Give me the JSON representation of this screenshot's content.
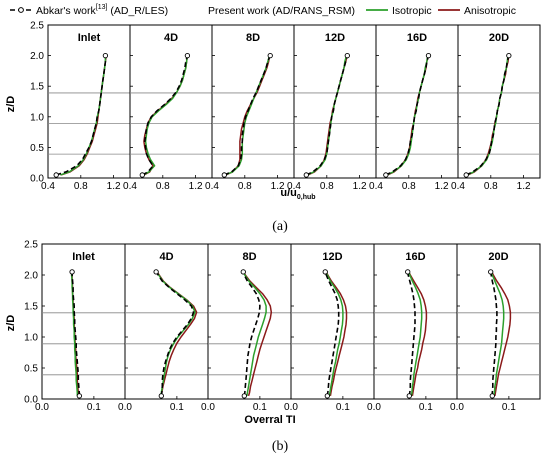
{
  "legend": {
    "ref_label": "Abkar's work",
    "ref_citation": "[13]",
    "ref_method": " (AD_R/LES)",
    "present_label": "Present work (AD/RANS_RSM)",
    "iso_label": "Isotropic",
    "aniso_label": "Anisotropic"
  },
  "colors": {
    "ref": "#000000",
    "isotropic": "#2ca02c",
    "anisotropic": "#8b1a1a",
    "hline": "#888888"
  },
  "figure_a": {
    "caption": "(a)",
    "ylabel": "z/D",
    "xlabel_main": "u/u",
    "xlabel_sub": "0,hub"
  },
  "figure_b": {
    "caption": "(b)",
    "ylabel": "z/D",
    "xlabel": "Overral TI"
  },
  "chart_data": [
    {
      "type": "line",
      "panel_titles": [
        "Inlet",
        "4D",
        "8D",
        "12D",
        "16D",
        "20D"
      ],
      "xlim": [
        0.4,
        1.4
      ],
      "xticks": [
        "0.4",
        "0.8",
        "1.2",
        "0.4",
        "0.8",
        "1.2",
        "0.4",
        "0.8",
        "1.2",
        "0.4",
        "0.8",
        "1.2",
        "0.4",
        "0.8",
        "1.2",
        "0.4",
        "0.8",
        "1.2"
      ],
      "ylim": [
        0,
        2.5
      ],
      "yticks": [
        "0.0",
        "0.5",
        "1.0",
        "1.5",
        "2.0",
        "2.5"
      ],
      "hlines": [
        0.39,
        0.89,
        1.39
      ],
      "z": [
        0.05,
        0.1,
        0.2,
        0.3,
        0.4,
        0.5,
        0.6,
        0.7,
        0.8,
        0.9,
        1.0,
        1.1,
        1.2,
        1.3,
        1.4,
        1.5,
        1.6,
        1.7,
        1.8,
        1.9,
        2.0
      ],
      "panels": [
        {
          "ref": [
            0.5,
            0.62,
            0.75,
            0.82,
            0.86,
            0.9,
            0.93,
            0.95,
            0.97,
            0.99,
            1.0,
            1.02,
            1.03,
            1.04,
            1.05,
            1.06,
            1.07,
            1.08,
            1.09,
            1.1,
            1.1
          ],
          "iso": [
            0.55,
            0.66,
            0.77,
            0.83,
            0.87,
            0.9,
            0.93,
            0.95,
            0.97,
            0.99,
            1.0,
            1.02,
            1.03,
            1.04,
            1.05,
            1.06,
            1.07,
            1.08,
            1.09,
            1.1,
            1.1
          ],
          "aniso": [
            0.56,
            0.67,
            0.78,
            0.84,
            0.88,
            0.91,
            0.94,
            0.96,
            0.98,
            1.0,
            1.01,
            1.02,
            1.03,
            1.04,
            1.05,
            1.06,
            1.07,
            1.08,
            1.09,
            1.1,
            1.11
          ]
        },
        {
          "ref": [
            0.55,
            0.62,
            0.68,
            0.63,
            0.6,
            0.59,
            0.58,
            0.59,
            0.6,
            0.62,
            0.66,
            0.73,
            0.82,
            0.9,
            0.96,
            1.0,
            1.03,
            1.05,
            1.07,
            1.08,
            1.1
          ],
          "iso": [
            0.56,
            0.63,
            0.7,
            0.65,
            0.62,
            0.6,
            0.59,
            0.6,
            0.61,
            0.63,
            0.67,
            0.75,
            0.84,
            0.92,
            0.97,
            1.01,
            1.04,
            1.06,
            1.08,
            1.09,
            1.1
          ],
          "aniso": [
            0.57,
            0.64,
            0.68,
            0.63,
            0.6,
            0.58,
            0.57,
            0.58,
            0.6,
            0.62,
            0.66,
            0.74,
            0.83,
            0.91,
            0.97,
            1.01,
            1.04,
            1.06,
            1.08,
            1.09,
            1.1
          ]
        },
        {
          "ref": [
            0.55,
            0.64,
            0.72,
            0.75,
            0.76,
            0.76,
            0.77,
            0.77,
            0.78,
            0.79,
            0.81,
            0.84,
            0.87,
            0.9,
            0.94,
            0.97,
            1.0,
            1.03,
            1.06,
            1.08,
            1.11
          ],
          "iso": [
            0.56,
            0.65,
            0.73,
            0.76,
            0.77,
            0.77,
            0.77,
            0.78,
            0.79,
            0.8,
            0.82,
            0.85,
            0.88,
            0.91,
            0.94,
            0.97,
            1.0,
            1.03,
            1.06,
            1.08,
            1.1
          ],
          "aniso": [
            0.57,
            0.65,
            0.72,
            0.74,
            0.74,
            0.74,
            0.74,
            0.75,
            0.76,
            0.78,
            0.8,
            0.83,
            0.87,
            0.91,
            0.95,
            0.98,
            1.01,
            1.04,
            1.07,
            1.09,
            1.1
          ]
        },
        {
          "ref": [
            0.55,
            0.63,
            0.72,
            0.77,
            0.8,
            0.81,
            0.82,
            0.83,
            0.84,
            0.85,
            0.86,
            0.88,
            0.89,
            0.91,
            0.93,
            0.95,
            0.97,
            0.99,
            1.01,
            1.03,
            1.05
          ],
          "iso": [
            0.56,
            0.64,
            0.73,
            0.78,
            0.8,
            0.81,
            0.82,
            0.83,
            0.84,
            0.85,
            0.86,
            0.88,
            0.89,
            0.91,
            0.93,
            0.95,
            0.97,
            0.99,
            1.01,
            1.02,
            1.04
          ],
          "aniso": [
            0.57,
            0.65,
            0.73,
            0.77,
            0.79,
            0.8,
            0.81,
            0.82,
            0.83,
            0.84,
            0.86,
            0.87,
            0.89,
            0.91,
            0.93,
            0.95,
            0.97,
            0.99,
            1.01,
            1.03,
            1.05
          ]
        },
        {
          "ref": [
            0.52,
            0.6,
            0.7,
            0.76,
            0.79,
            0.81,
            0.82,
            0.84,
            0.85,
            0.86,
            0.87,
            0.89,
            0.9,
            0.92,
            0.93,
            0.95,
            0.97,
            0.99,
            1.01,
            1.02,
            1.04
          ],
          "iso": [
            0.53,
            0.61,
            0.71,
            0.77,
            0.8,
            0.82,
            0.83,
            0.84,
            0.85,
            0.86,
            0.87,
            0.89,
            0.9,
            0.92,
            0.93,
            0.95,
            0.97,
            0.99,
            1.0,
            1.02,
            1.03
          ],
          "aniso": [
            0.54,
            0.62,
            0.71,
            0.76,
            0.79,
            0.81,
            0.82,
            0.83,
            0.84,
            0.86,
            0.87,
            0.88,
            0.9,
            0.91,
            0.93,
            0.95,
            0.97,
            0.99,
            1.01,
            1.02,
            1.04
          ]
        },
        {
          "ref": [
            0.5,
            0.58,
            0.68,
            0.74,
            0.78,
            0.8,
            0.81,
            0.83,
            0.84,
            0.85,
            0.87,
            0.88,
            0.9,
            0.91,
            0.93,
            0.94,
            0.96,
            0.97,
            0.99,
            1.0,
            1.02
          ],
          "iso": [
            0.51,
            0.59,
            0.69,
            0.75,
            0.78,
            0.8,
            0.82,
            0.83,
            0.84,
            0.86,
            0.87,
            0.88,
            0.9,
            0.91,
            0.93,
            0.94,
            0.96,
            0.97,
            0.99,
            1.0,
            1.01
          ],
          "aniso": [
            0.52,
            0.6,
            0.69,
            0.74,
            0.77,
            0.79,
            0.81,
            0.82,
            0.84,
            0.85,
            0.87,
            0.88,
            0.9,
            0.91,
            0.93,
            0.94,
            0.96,
            0.98,
            0.99,
            1.01,
            1.02
          ]
        }
      ]
    },
    {
      "type": "line",
      "panel_titles": [
        "Inlet",
        "4D",
        "8D",
        "12D",
        "16D",
        "20D"
      ],
      "xlim": [
        0.0,
        0.16
      ],
      "xticks": [
        "0.0",
        "0.1",
        "0.0",
        "0.1",
        "0.0",
        "0.1",
        "0.0",
        "0.1",
        "0.0",
        "0.1",
        "0.0",
        "0.1"
      ],
      "ylim": [
        0,
        2.5
      ],
      "yticks": [
        "0.0",
        "0.5",
        "1.0",
        "1.5",
        "2.0",
        "2.5"
      ],
      "hlines": [
        0.39,
        0.89,
        1.39
      ],
      "z": [
        0.05,
        0.1,
        0.2,
        0.3,
        0.4,
        0.5,
        0.6,
        0.7,
        0.8,
        0.9,
        1.0,
        1.1,
        1.2,
        1.3,
        1.4,
        1.5,
        1.6,
        1.7,
        1.8,
        1.9,
        2.0,
        2.05
      ],
      "panels": [
        {
          "ref": [
            0.072,
            0.072,
            0.071,
            0.07,
            0.07,
            0.069,
            0.068,
            0.067,
            0.066,
            0.066,
            0.065,
            0.064,
            0.063,
            0.063,
            0.062,
            0.062,
            0.061,
            0.06,
            0.06,
            0.059,
            0.058,
            0.058
          ],
          "iso": [
            0.068,
            0.068,
            0.067,
            0.066,
            0.066,
            0.065,
            0.064,
            0.064,
            0.063,
            0.063,
            0.062,
            0.062,
            0.061,
            0.061,
            0.06,
            0.06,
            0.059,
            0.059,
            0.058,
            0.058,
            0.057,
            0.057
          ],
          "aniso": [
            0.07,
            0.07,
            0.069,
            0.068,
            0.068,
            0.067,
            0.066,
            0.065,
            0.065,
            0.064,
            0.063,
            0.063,
            0.062,
            0.062,
            0.061,
            0.06,
            0.06,
            0.059,
            0.059,
            0.058,
            0.058,
            0.057
          ]
        },
        {
          "ref": [
            0.07,
            0.071,
            0.072,
            0.072,
            0.073,
            0.075,
            0.078,
            0.082,
            0.086,
            0.092,
            0.1,
            0.11,
            0.12,
            0.128,
            0.132,
            0.128,
            0.115,
            0.1,
            0.085,
            0.072,
            0.064,
            0.06
          ],
          "iso": [
            0.068,
            0.07,
            0.072,
            0.074,
            0.076,
            0.078,
            0.08,
            0.083,
            0.088,
            0.094,
            0.102,
            0.112,
            0.122,
            0.13,
            0.135,
            0.13,
            0.118,
            0.102,
            0.086,
            0.073,
            0.065,
            0.061
          ],
          "aniso": [
            0.069,
            0.071,
            0.073,
            0.076,
            0.079,
            0.082,
            0.085,
            0.089,
            0.094,
            0.1,
            0.108,
            0.117,
            0.126,
            0.134,
            0.138,
            0.132,
            0.119,
            0.103,
            0.087,
            0.074,
            0.066,
            0.062
          ]
        },
        {
          "ref": [
            0.07,
            0.071,
            0.072,
            0.073,
            0.074,
            0.075,
            0.076,
            0.077,
            0.079,
            0.081,
            0.084,
            0.088,
            0.092,
            0.096,
            0.099,
            0.1,
            0.098,
            0.093,
            0.085,
            0.076,
            0.07,
            0.068
          ],
          "iso": [
            0.075,
            0.076,
            0.078,
            0.08,
            0.082,
            0.084,
            0.086,
            0.088,
            0.091,
            0.094,
            0.097,
            0.101,
            0.105,
            0.109,
            0.112,
            0.112,
            0.108,
            0.1,
            0.09,
            0.079,
            0.071,
            0.068
          ],
          "aniso": [
            0.078,
            0.08,
            0.082,
            0.085,
            0.088,
            0.091,
            0.094,
            0.097,
            0.1,
            0.104,
            0.108,
            0.112,
            0.116,
            0.12,
            0.122,
            0.12,
            0.114,
            0.105,
            0.093,
            0.081,
            0.072,
            0.069
          ]
        },
        {
          "ref": [
            0.07,
            0.071,
            0.072,
            0.073,
            0.075,
            0.077,
            0.079,
            0.081,
            0.083,
            0.085,
            0.087,
            0.089,
            0.091,
            0.092,
            0.092,
            0.091,
            0.089,
            0.085,
            0.079,
            0.073,
            0.068,
            0.066
          ],
          "iso": [
            0.074,
            0.075,
            0.077,
            0.079,
            0.081,
            0.083,
            0.086,
            0.088,
            0.09,
            0.093,
            0.095,
            0.097,
            0.099,
            0.1,
            0.1,
            0.099,
            0.096,
            0.091,
            0.084,
            0.076,
            0.07,
            0.067
          ],
          "aniso": [
            0.076,
            0.077,
            0.079,
            0.082,
            0.084,
            0.087,
            0.09,
            0.093,
            0.096,
            0.099,
            0.102,
            0.104,
            0.106,
            0.107,
            0.107,
            0.105,
            0.101,
            0.095,
            0.087,
            0.078,
            0.071,
            0.068
          ]
        },
        {
          "ref": [
            0.068,
            0.069,
            0.07,
            0.07,
            0.071,
            0.072,
            0.073,
            0.074,
            0.075,
            0.076,
            0.077,
            0.078,
            0.079,
            0.079,
            0.079,
            0.078,
            0.077,
            0.075,
            0.072,
            0.069,
            0.066,
            0.065
          ],
          "iso": [
            0.072,
            0.073,
            0.074,
            0.076,
            0.077,
            0.079,
            0.081,
            0.083,
            0.085,
            0.087,
            0.089,
            0.09,
            0.091,
            0.092,
            0.092,
            0.091,
            0.089,
            0.085,
            0.08,
            0.074,
            0.069,
            0.067
          ],
          "aniso": [
            0.074,
            0.075,
            0.077,
            0.079,
            0.081,
            0.084,
            0.086,
            0.089,
            0.092,
            0.094,
            0.097,
            0.099,
            0.1,
            0.101,
            0.101,
            0.099,
            0.096,
            0.091,
            0.084,
            0.077,
            0.07,
            0.067
          ]
        },
        {
          "ref": [
            0.068,
            0.068,
            0.069,
            0.069,
            0.07,
            0.071,
            0.072,
            0.073,
            0.074,
            0.075,
            0.075,
            0.076,
            0.076,
            0.077,
            0.077,
            0.076,
            0.075,
            0.073,
            0.071,
            0.068,
            0.066,
            0.065
          ],
          "iso": [
            0.071,
            0.072,
            0.073,
            0.075,
            0.076,
            0.078,
            0.08,
            0.082,
            0.084,
            0.086,
            0.087,
            0.088,
            0.089,
            0.09,
            0.09,
            0.089,
            0.087,
            0.083,
            0.078,
            0.073,
            0.068,
            0.066
          ],
          "aniso": [
            0.073,
            0.074,
            0.076,
            0.078,
            0.08,
            0.083,
            0.086,
            0.089,
            0.092,
            0.095,
            0.098,
            0.1,
            0.102,
            0.103,
            0.103,
            0.101,
            0.098,
            0.092,
            0.085,
            0.077,
            0.07,
            0.067
          ]
        }
      ]
    }
  ]
}
